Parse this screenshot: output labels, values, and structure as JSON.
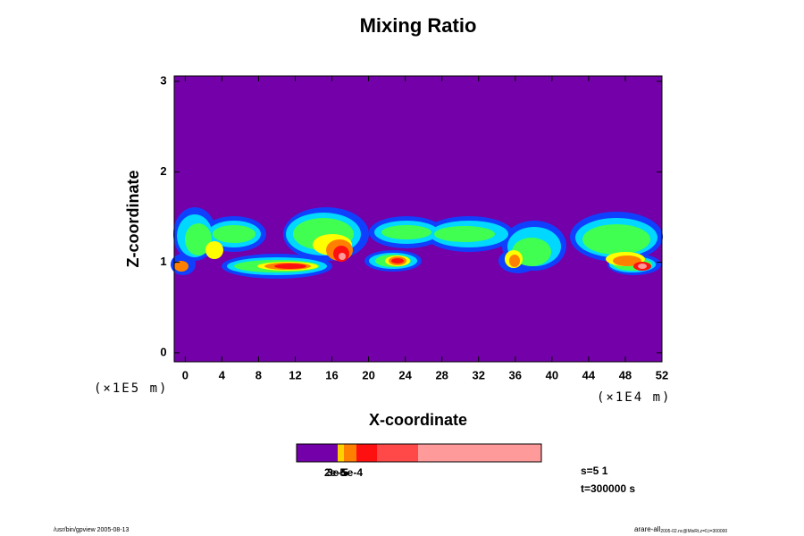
{
  "chart_data": {
    "type": "contour",
    "title": "Mixing Ratio",
    "xlabel": "X-coordinate",
    "ylabel": "Z-coordinate",
    "x_unit": "(×1E4 m)",
    "y_unit": "(×1E5 m)",
    "background_color": "#7300a8",
    "xlim": [
      -1.2,
      52
    ],
    "ylim": [
      -0.1,
      3.06
    ],
    "xticks": [
      0,
      4,
      8,
      12,
      16,
      20,
      24,
      28,
      32,
      36,
      40,
      44,
      48,
      52
    ],
    "yticks": [
      0,
      1,
      2,
      3
    ],
    "colorbar": {
      "colors": [
        "#7300a8",
        "#ffd000",
        "#ff8000",
        "#ff1010",
        "#ff4848",
        "#ff9a9a"
      ],
      "labels": [
        "2e-5",
        "3e-5",
        "5e-4"
      ]
    },
    "annotations": [
      "s=5 1",
      "t=300000 s"
    ],
    "footer_left": "/usr/bin/gpview 2005-08-13",
    "footer_right": "arare-all",
    "footer_right_sub": "2005-02.nc@MixRt,z=0,t=300000"
  }
}
